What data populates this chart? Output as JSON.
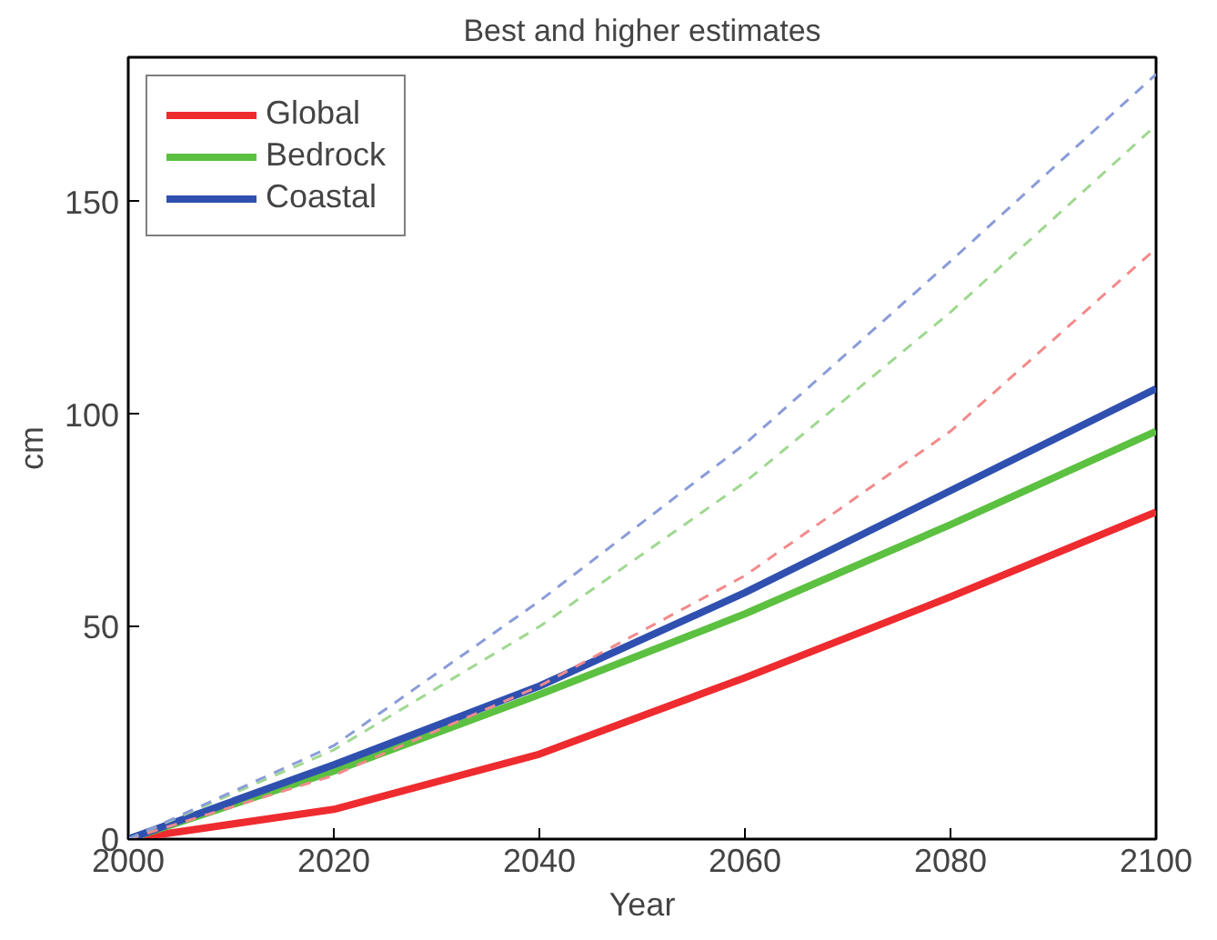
{
  "chart_data": {
    "type": "line",
    "title": "Best and higher estimates",
    "xlabel": "Year",
    "ylabel": "cm",
    "x": [
      2000,
      2020,
      2040,
      2060,
      2080,
      2100
    ],
    "series": [
      {
        "name": "Global",
        "color": "#ee2b2f",
        "values": [
          0,
          7,
          20,
          38,
          57,
          77
        ],
        "line_style": "solid"
      },
      {
        "name": "Bedrock",
        "color": "#5cc040",
        "values": [
          0,
          16,
          34,
          53,
          74,
          96
        ],
        "line_style": "solid"
      },
      {
        "name": "Coastal",
        "color": "#3050b0",
        "values": [
          0,
          17.5,
          36,
          58,
          82,
          106
        ],
        "line_style": "solid"
      },
      {
        "color": "#f28a8c",
        "values": [
          0,
          15,
          36,
          62,
          96,
          139
        ],
        "line_style": "dashed"
      },
      {
        "color": "#9fd890",
        "values": [
          0,
          21,
          50,
          84,
          124,
          168
        ],
        "line_style": "dashed"
      },
      {
        "color": "#8a9cd8",
        "values": [
          0,
          22,
          56,
          93,
          136,
          180
        ],
        "line_style": "dashed"
      }
    ],
    "xlim": [
      2000,
      2100
    ],
    "ylim": [
      0,
      184
    ],
    "xticks": [
      2000,
      2020,
      2040,
      2060,
      2080,
      2100
    ],
    "yticks": [
      0,
      50,
      100,
      150
    ],
    "grid": false,
    "legend": "top left"
  }
}
